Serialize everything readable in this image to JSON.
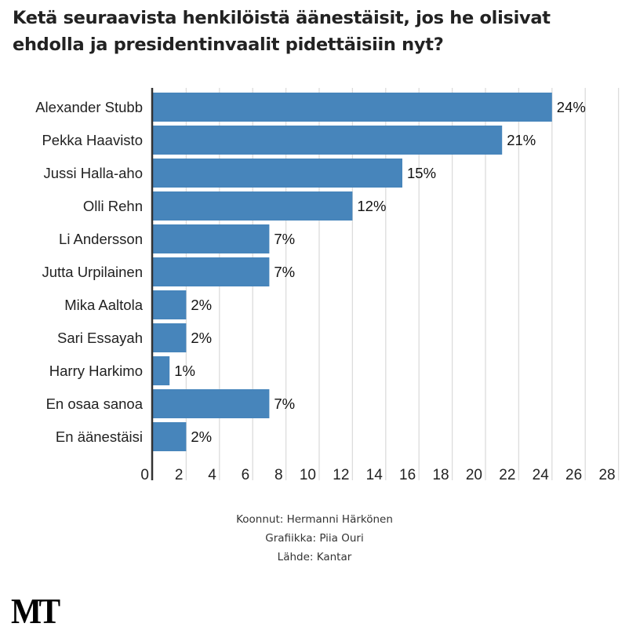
{
  "chart_data": {
    "type": "bar",
    "orientation": "horizontal",
    "title": "Ketä seuraavista henkilöistä äänestäisit, jos he olisivat ehdolla ja presidentinvaalit pidettäisiin nyt?",
    "categories": [
      "Alexander Stubb",
      "Pekka Haavisto",
      "Jussi Halla-aho",
      "Olli Rehn",
      "Li Andersson",
      "Jutta Urpilainen",
      "Mika Aaltola",
      "Sari Essayah",
      "Harry Harkimo",
      "En osaa sanoa",
      "En äänestäisi"
    ],
    "values": [
      24,
      21,
      15,
      12,
      7,
      7,
      2,
      2,
      1,
      7,
      2
    ],
    "data_labels": [
      "24%",
      "21%",
      "15%",
      "12%",
      "7%",
      "7%",
      "2%",
      "2%",
      "1%",
      "7%",
      "2%"
    ],
    "xlim": [
      0,
      28
    ],
    "xticks": [
      0,
      2,
      4,
      6,
      8,
      10,
      12,
      14,
      16,
      18,
      20,
      22,
      24,
      26,
      28
    ],
    "grid": true,
    "bar_color": "#4785bb"
  },
  "footer": {
    "compiled_by": "Koonnut: Hermanni Härkönen",
    "graphics": "Grafiikka: Piia Ouri",
    "source": "Lähde: Kantar"
  },
  "logo": "MT"
}
